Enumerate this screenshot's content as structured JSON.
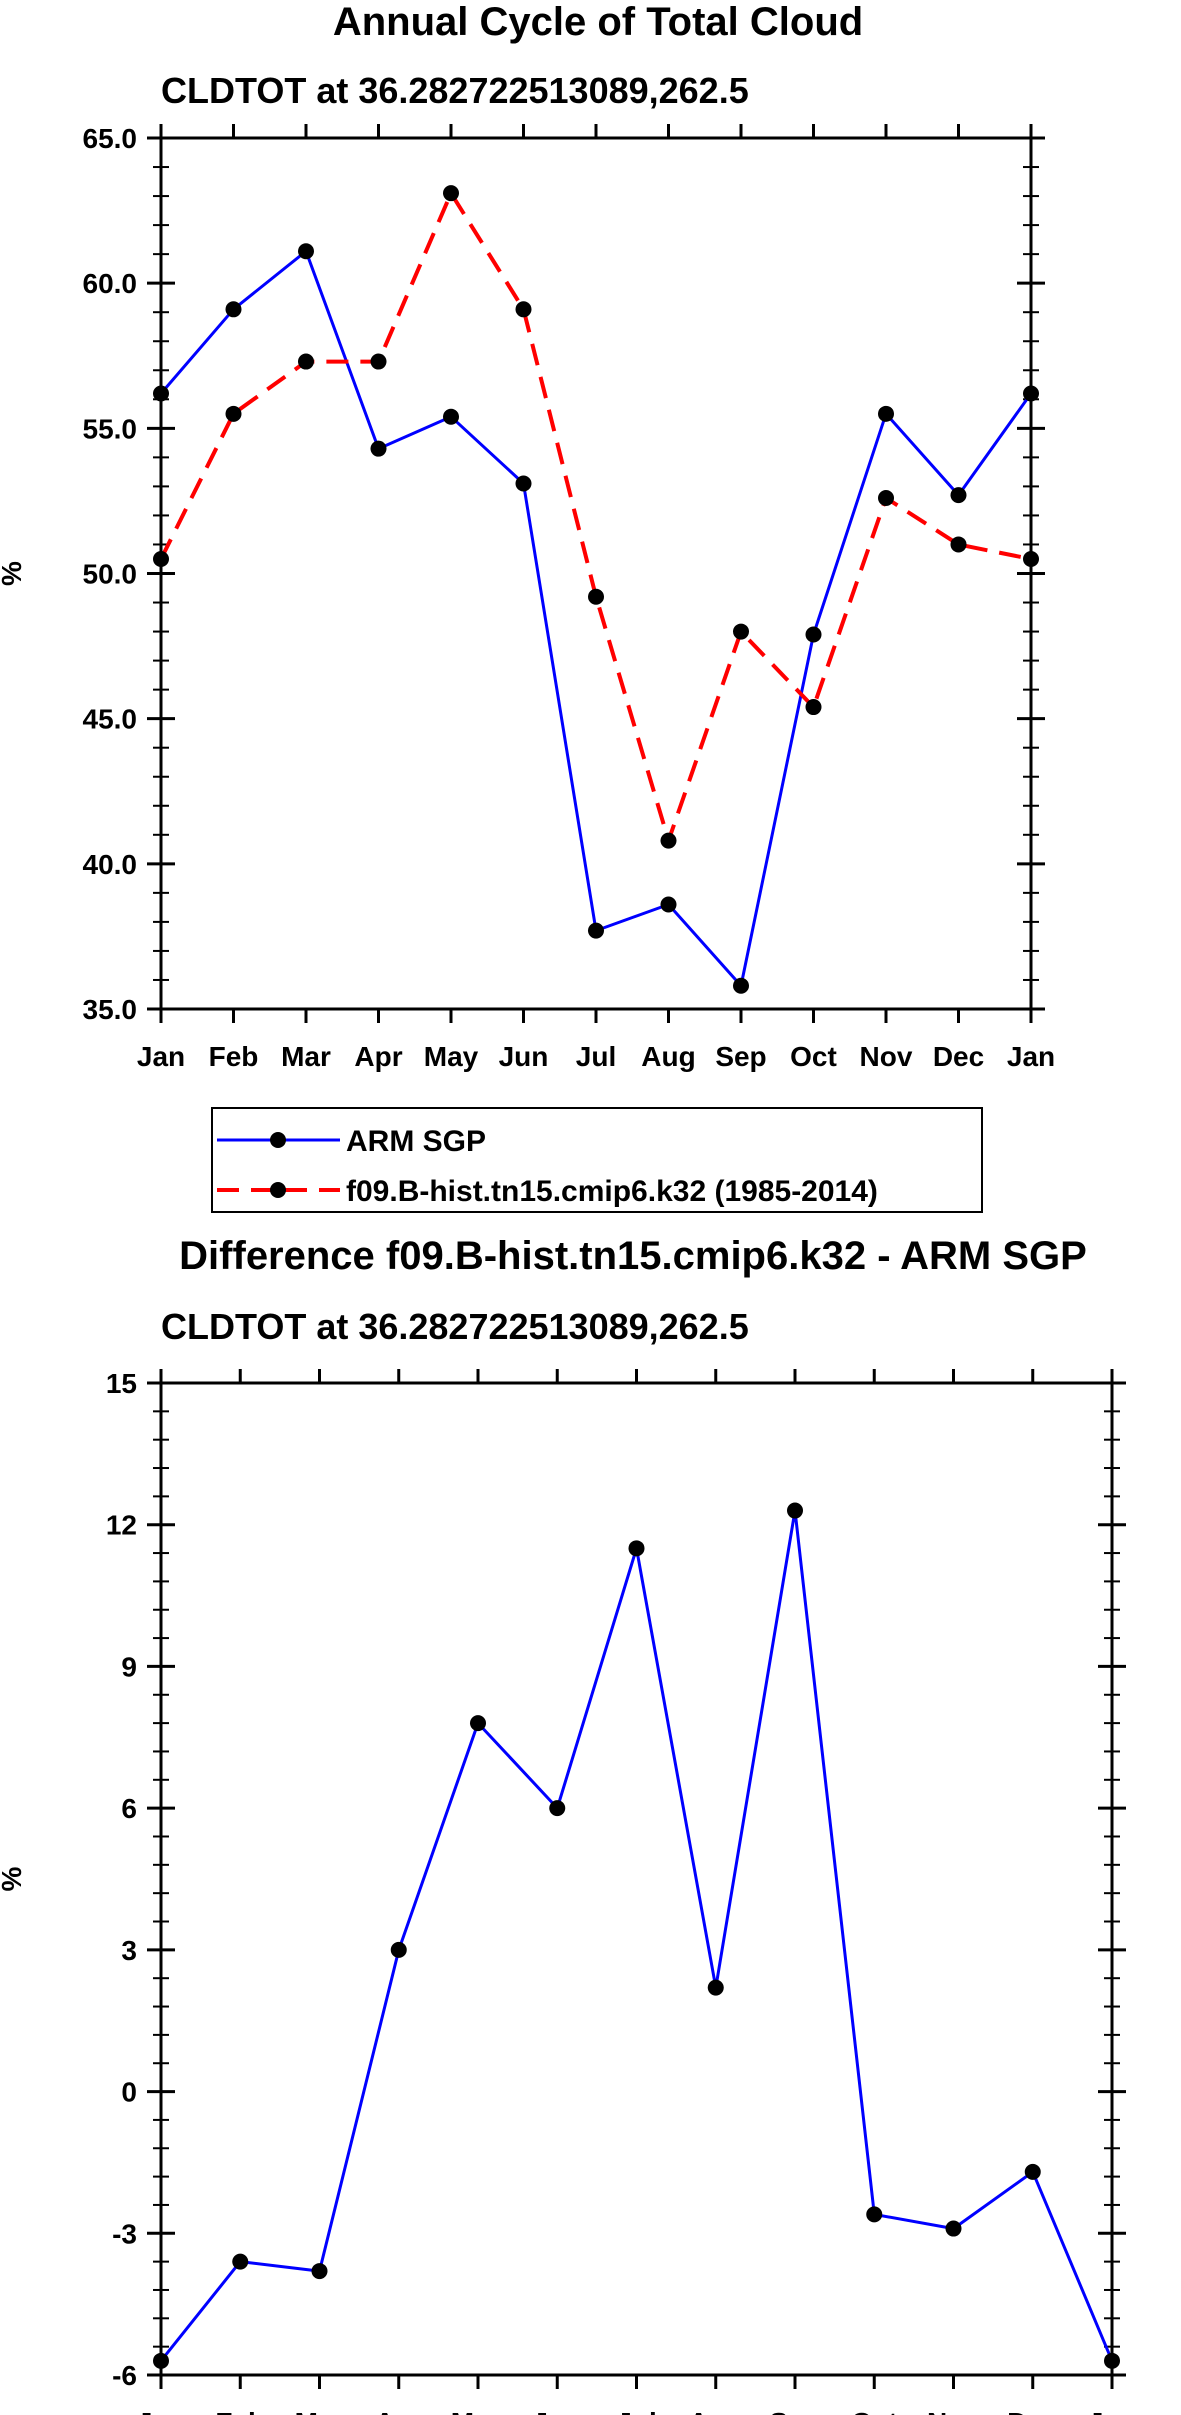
{
  "figure": {
    "title": "Annual Cycle of Total Cloud",
    "diff_title": "Difference f09.B-hist.tn15.cmip6.k32 - ARM SGP"
  },
  "colors": {
    "obs": "#0000ff",
    "model": "#ff0000",
    "diff": "#0000ff",
    "marker": "#000000",
    "axis": "#000000"
  },
  "legend": {
    "entries": [
      "ARM SGP",
      "f09.B-hist.tn15.cmip6.k32 (1985-2014)"
    ]
  },
  "chart_data": [
    {
      "type": "line",
      "title": "CLDTOT at 36.282722513089,262.5",
      "xlabel": "",
      "ylabel": "%",
      "categories": [
        "Jan",
        "Feb",
        "Mar",
        "Apr",
        "May",
        "Jun",
        "Jul",
        "Aug",
        "Sep",
        "Oct",
        "Nov",
        "Dec",
        "Jan"
      ],
      "ylim": [
        35.0,
        65.0
      ],
      "yticks": [
        "35.0",
        "40.0",
        "45.0",
        "50.0",
        "55.0",
        "60.0",
        "65.0"
      ],
      "series": [
        {
          "name": "ARM SGP",
          "style": "solid",
          "values": [
            56.2,
            59.1,
            61.1,
            54.3,
            55.4,
            53.1,
            37.7,
            38.6,
            35.8,
            47.9,
            55.5,
            52.7,
            56.2
          ]
        },
        {
          "name": "f09.B-hist.tn15.cmip6.k32 (1985-2014)",
          "style": "dashed",
          "values": [
            50.5,
            55.5,
            57.3,
            57.3,
            63.1,
            59.1,
            49.2,
            40.8,
            48.0,
            45.4,
            52.6,
            51.0,
            50.5
          ]
        }
      ]
    },
    {
      "type": "line",
      "title": "CLDTOT at 36.282722513089,262.5",
      "xlabel": "",
      "ylabel": "%",
      "categories": [
        "Jan",
        "Feb",
        "Mar",
        "Apr",
        "May",
        "Jun",
        "Jul",
        "Aug",
        "Sep",
        "Oct",
        "Nov",
        "Dec",
        "Jan"
      ],
      "ylim": [
        -6,
        15
      ],
      "yticks": [
        "-6",
        "-3",
        "0",
        "3",
        "6",
        "9",
        "12",
        "15"
      ],
      "series": [
        {
          "name": "Difference",
          "style": "solid",
          "values": [
            -5.7,
            -3.6,
            -3.8,
            3.0,
            7.8,
            6.0,
            11.5,
            2.2,
            12.3,
            -2.6,
            -2.9,
            -1.7,
            -5.7
          ]
        }
      ]
    }
  ]
}
